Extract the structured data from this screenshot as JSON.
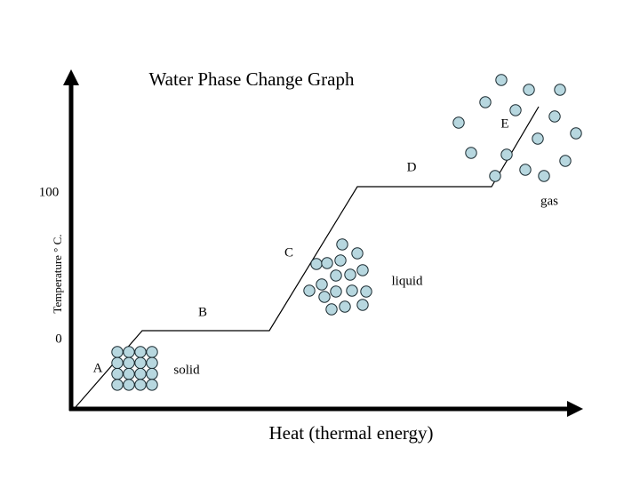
{
  "title": "Water Phase Change Graph",
  "axes": {
    "y_label": "Temperature ° C.",
    "x_label": "Heat (thermal energy)",
    "y_ticks": [
      "100",
      "0"
    ]
  },
  "points": [
    "A",
    "B",
    "C",
    "D",
    "E"
  ],
  "phases": [
    "solid",
    "liquid",
    "gas"
  ]
}
